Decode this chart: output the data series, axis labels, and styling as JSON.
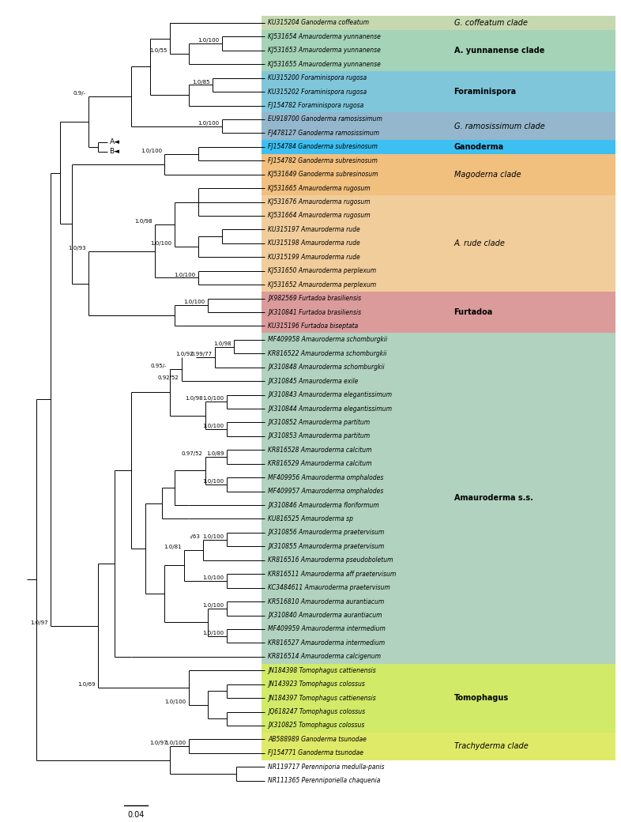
{
  "figure_width": 7.86,
  "figure_height": 10.4,
  "dpi": 100,
  "taxa": [
    "KU315204_Ganoderma coffeatum",
    "KJ531654_Amauroderma yunnanense",
    "KJ531653_Amauroderma yunnanense",
    "KJ531655_Amauroderma yunnanense",
    "KU315200_Foraminispora rugosa",
    "KU315202_Foraminispora rugosa",
    "FJ154782_Foraminispora rugosa",
    "EU918700_Ganoderma ramosissimum",
    "FJ478127_Ganoderma ramosissimum",
    "FJ154784_Ganoderma subresinosum",
    "FJ154782_Ganoderma subresinosum",
    "KJ531649_Ganoderma subresinosum",
    "KJ531665_Amauroderma rugosum",
    "KJ531676_Amauroderma rugosum",
    "KJ531664_Amauroderma rugosum",
    "KU315197_Amauroderma rude",
    "KU315198_Amauroderma rude",
    "KU315199_Amauroderma rude",
    "KJ531650_Amauroderma perplexum",
    "KJ531652_Amauroderma perplexum",
    "JX982569_Furtadoa brasiliensis",
    "JX310841_Furtadoa brasiliensis",
    "KU315196_Furtadoa biseptata",
    "MF409958_Amauroderma schomburgkii",
    "KR816522_Amauroderma schomburgkii",
    "JX310848_Amauroderma schomburgkii",
    "JX310845_Amauroderma exile",
    "JX310843_Amauroderma elegantissimum",
    "JX310844_Amauroderma elegantissimum",
    "JX310852_Amauroderma partitum",
    "JX310853_Amauroderma partitum",
    "KR816528_Amauroderma calcitum",
    "KR816529_Amauroderma calcitum",
    "MF409956_Amauroderma omphalodes",
    "MF409957_Amauroderma omphalodes",
    "JX310846_Amauroderma floriformum",
    "KU816525_Amauroderma sp",
    "JX310856_Amauroderma praetervisum",
    "JX310855_Amauroderma praetervisum",
    "KR816516_Amauroderma pseudoboletum",
    "KR816511_Amauroderma aff praetervisum",
    "KC3484611_Amauroderma praetervisum",
    "KR516810_Amauroderma aurantiacum",
    "JX310840_Amauroderma aurantiacum",
    "MF409959_Amauroderma intermedium",
    "KR816527_Amauroderma intermedium",
    "KR816514_Amauroderma calcigenum",
    "JN184398_Tomophagus cattienensis",
    "JN143923_Tomophagus colossus",
    "JN184397_Tomophagus cattienensis",
    "JQ618247_Tomophagus colossus",
    "JX310825_Tomophagus colossus",
    "AB588989_Ganoderma tsunodae",
    "FJ154771_Ganoderma tsunodae",
    "NR119717_Perenniporia medulla-panis",
    "NR111365_Perenniporiella chaquenia"
  ],
  "clade_ranges": [
    [
      0,
      1,
      "#c0d4a8",
      "G. coffeatum clade",
      false
    ],
    [
      1,
      4,
      "#9acfb0",
      "A. yunnanense clade",
      true
    ],
    [
      4,
      7,
      "#72c0d8",
      "Foraminispora",
      true
    ],
    [
      7,
      9,
      "#88b0c8",
      "G. ramosissimum clade",
      false
    ],
    [
      9,
      10,
      "#28b8f0",
      "Ganoderma",
      true
    ],
    [
      10,
      13,
      "#f0b870",
      "Magoderna clade",
      false
    ],
    [
      13,
      20,
      "#f0c890",
      "A. rude clade",
      false
    ],
    [
      20,
      23,
      "#d89090",
      "Furtadoa",
      true
    ],
    [
      23,
      47,
      "#a8cdb8",
      "Amauroderma s.s.",
      true
    ],
    [
      47,
      52,
      "#cce858",
      "Tomophagus",
      true
    ],
    [
      52,
      54,
      "#dce858",
      "Trachyderma clade",
      false
    ]
  ],
  "node_labels": {
    "yunnanense_inner": "1.0/100",
    "yunnanense_outer": "1.0/55",
    "foraminispora": "1.0/85",
    "ramosissimum": "1.0/100",
    "upper_coff_form": "0.9/-",
    "subresinosum_inner": "1.0/100",
    "rugosum_rude": "1.0/100",
    "rude_inner": "1.0/100",
    "rude_perp": "1.0/98",
    "rude_total": "1.0/98",
    "perplexum": "1.0/100",
    "furtadoa_inner": "1.0/100",
    "furtadoa_outer": "1.0/93",
    "sch_inner2": "1.0/98",
    "sch_inner1": "0.99/77",
    "sch_top": "1.0/92",
    "exile_node": "0.92/52",
    "eleg_inner": "1.0/100",
    "eleg_part": "1.0/98",
    "part_inner": "1.0/100",
    "calc_inner": "1.0/89",
    "omph_inner": "1.0/100",
    "calc_omph": "0.97/52",
    "prae_inner": "1.0/100",
    "prae_node": "-/63",
    "pseudo_node": "1.0/81",
    "kc_inner": "1.0/100",
    "aur_inner": "1.0/100",
    "int_inner": "1.0/100",
    "ss_outer": "0.95/-",
    "ss_main": "1.0/69",
    "tom_inner1": "1.0/100",
    "tom_outer": "1.0/100",
    "trach_inner": "1.0/100",
    "trach_outgroup": "1.0/97",
    "main_root": "1.0/97"
  }
}
